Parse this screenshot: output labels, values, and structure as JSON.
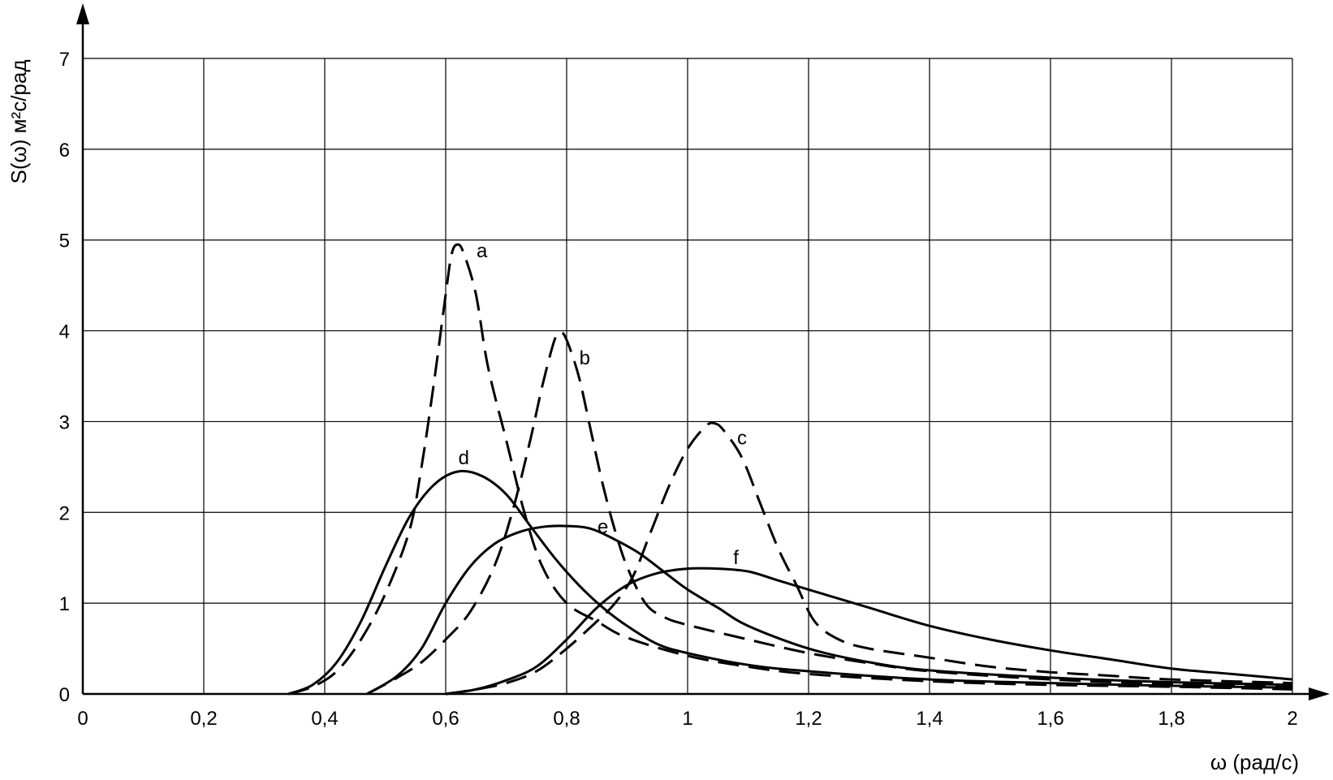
{
  "chart_data": {
    "type": "line",
    "xlabel": "ω (рад/с)",
    "ylabel": "S(ω) м²с/рад",
    "xlim": [
      0,
      2
    ],
    "ylim": [
      0,
      7
    ],
    "x_ticks": [
      "0",
      "0,2",
      "0,4",
      "0,6",
      "0,8",
      "1",
      "1,2",
      "1,4",
      "1,6",
      "1,8",
      "2"
    ],
    "y_ticks": [
      "0",
      "1",
      "2",
      "3",
      "4",
      "5",
      "6",
      "7"
    ],
    "grid": true,
    "series": [
      {
        "name": "a",
        "style": "dashed",
        "label_at": [
          0.66,
          4.88
        ],
        "points": [
          [
            0.34,
            0
          ],
          [
            0.38,
            0.08
          ],
          [
            0.42,
            0.25
          ],
          [
            0.46,
            0.6
          ],
          [
            0.5,
            1.1
          ],
          [
            0.54,
            1.8
          ],
          [
            0.56,
            2.5
          ],
          [
            0.58,
            3.4
          ],
          [
            0.6,
            4.4
          ],
          [
            0.61,
            4.85
          ],
          [
            0.62,
            4.95
          ],
          [
            0.63,
            4.85
          ],
          [
            0.65,
            4.4
          ],
          [
            0.67,
            3.6
          ],
          [
            0.7,
            2.8
          ],
          [
            0.73,
            2.0
          ],
          [
            0.76,
            1.4
          ],
          [
            0.8,
            1.0
          ],
          [
            0.85,
            0.8
          ],
          [
            0.9,
            0.62
          ],
          [
            1.0,
            0.42
          ],
          [
            1.1,
            0.3
          ],
          [
            1.2,
            0.22
          ],
          [
            1.4,
            0.14
          ],
          [
            1.6,
            0.1
          ],
          [
            1.8,
            0.08
          ],
          [
            2.0,
            0.05
          ]
        ]
      },
      {
        "name": "b",
        "style": "dashed",
        "label_at": [
          0.83,
          3.7
        ],
        "points": [
          [
            0.47,
            0
          ],
          [
            0.52,
            0.18
          ],
          [
            0.56,
            0.35
          ],
          [
            0.6,
            0.6
          ],
          [
            0.64,
            0.9
          ],
          [
            0.68,
            1.4
          ],
          [
            0.71,
            2.0
          ],
          [
            0.74,
            2.8
          ],
          [
            0.76,
            3.4
          ],
          [
            0.78,
            3.9
          ],
          [
            0.79,
            3.98
          ],
          [
            0.8,
            3.9
          ],
          [
            0.82,
            3.5
          ],
          [
            0.84,
            2.9
          ],
          [
            0.86,
            2.3
          ],
          [
            0.88,
            1.8
          ],
          [
            0.9,
            1.4
          ],
          [
            0.93,
            1.0
          ],
          [
            0.96,
            0.85
          ],
          [
            1.0,
            0.76
          ],
          [
            1.1,
            0.6
          ],
          [
            1.2,
            0.45
          ],
          [
            1.3,
            0.34
          ],
          [
            1.4,
            0.25
          ],
          [
            1.6,
            0.16
          ],
          [
            1.8,
            0.11
          ],
          [
            2.0,
            0.08
          ]
        ]
      },
      {
        "name": "c",
        "style": "dashed",
        "label_at": [
          1.09,
          2.82
        ],
        "points": [
          [
            0.6,
            0
          ],
          [
            0.65,
            0.05
          ],
          [
            0.7,
            0.12
          ],
          [
            0.75,
            0.25
          ],
          [
            0.8,
            0.5
          ],
          [
            0.85,
            0.8
          ],
          [
            0.88,
            1.0
          ],
          [
            0.91,
            1.3
          ],
          [
            0.94,
            1.8
          ],
          [
            0.97,
            2.3
          ],
          [
            1.0,
            2.7
          ],
          [
            1.03,
            2.95
          ],
          [
            1.045,
            2.98
          ],
          [
            1.06,
            2.9
          ],
          [
            1.09,
            2.6
          ],
          [
            1.12,
            2.1
          ],
          [
            1.15,
            1.6
          ],
          [
            1.18,
            1.2
          ],
          [
            1.21,
            0.8
          ],
          [
            1.25,
            0.6
          ],
          [
            1.3,
            0.5
          ],
          [
            1.4,
            0.4
          ],
          [
            1.5,
            0.3
          ],
          [
            1.6,
            0.24
          ],
          [
            1.7,
            0.2
          ],
          [
            1.8,
            0.16
          ],
          [
            2.0,
            0.12
          ]
        ]
      },
      {
        "name": "d",
        "style": "solid",
        "label_at": [
          0.63,
          2.6
        ],
        "points": [
          [
            0.34,
            0
          ],
          [
            0.38,
            0.1
          ],
          [
            0.42,
            0.35
          ],
          [
            0.46,
            0.8
          ],
          [
            0.5,
            1.4
          ],
          [
            0.54,
            1.95
          ],
          [
            0.58,
            2.3
          ],
          [
            0.62,
            2.45
          ],
          [
            0.66,
            2.4
          ],
          [
            0.7,
            2.2
          ],
          [
            0.74,
            1.85
          ],
          [
            0.78,
            1.5
          ],
          [
            0.82,
            1.2
          ],
          [
            0.86,
            0.95
          ],
          [
            0.9,
            0.75
          ],
          [
            0.95,
            0.55
          ],
          [
            1.0,
            0.45
          ],
          [
            1.1,
            0.32
          ],
          [
            1.2,
            0.25
          ],
          [
            1.4,
            0.16
          ],
          [
            1.6,
            0.12
          ],
          [
            1.8,
            0.09
          ],
          [
            2.0,
            0.07
          ]
        ]
      },
      {
        "name": "e",
        "style": "solid",
        "label_at": [
          0.86,
          1.84
        ],
        "points": [
          [
            0.47,
            0
          ],
          [
            0.52,
            0.2
          ],
          [
            0.56,
            0.5
          ],
          [
            0.6,
            1.0
          ],
          [
            0.64,
            1.4
          ],
          [
            0.68,
            1.65
          ],
          [
            0.72,
            1.78
          ],
          [
            0.76,
            1.84
          ],
          [
            0.8,
            1.85
          ],
          [
            0.84,
            1.82
          ],
          [
            0.88,
            1.7
          ],
          [
            0.92,
            1.55
          ],
          [
            0.96,
            1.35
          ],
          [
            1.0,
            1.15
          ],
          [
            1.05,
            0.95
          ],
          [
            1.1,
            0.75
          ],
          [
            1.2,
            0.5
          ],
          [
            1.3,
            0.35
          ],
          [
            1.4,
            0.26
          ],
          [
            1.6,
            0.18
          ],
          [
            1.8,
            0.13
          ],
          [
            2.0,
            0.1
          ]
        ]
      },
      {
        "name": "f",
        "style": "solid",
        "label_at": [
          1.08,
          1.5
        ],
        "points": [
          [
            0.6,
            0
          ],
          [
            0.65,
            0.05
          ],
          [
            0.7,
            0.15
          ],
          [
            0.75,
            0.3
          ],
          [
            0.8,
            0.6
          ],
          [
            0.85,
            0.95
          ],
          [
            0.9,
            1.2
          ],
          [
            0.95,
            1.33
          ],
          [
            1.0,
            1.38
          ],
          [
            1.05,
            1.38
          ],
          [
            1.1,
            1.35
          ],
          [
            1.15,
            1.25
          ],
          [
            1.2,
            1.15
          ],
          [
            1.3,
            0.95
          ],
          [
            1.4,
            0.75
          ],
          [
            1.5,
            0.6
          ],
          [
            1.6,
            0.48
          ],
          [
            1.7,
            0.38
          ],
          [
            1.8,
            0.28
          ],
          [
            1.9,
            0.22
          ],
          [
            2.0,
            0.16
          ]
        ]
      }
    ]
  }
}
